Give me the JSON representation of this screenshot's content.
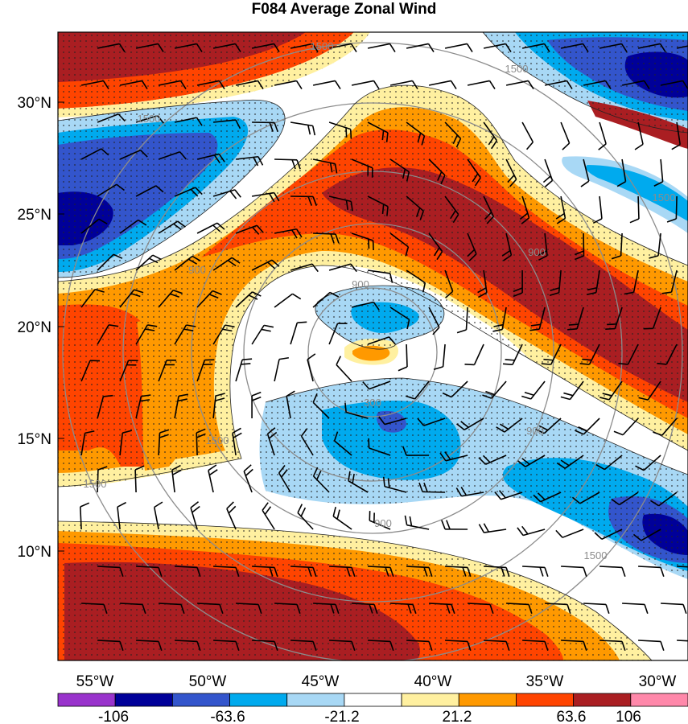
{
  "title": "F084 Average Zonal Wind",
  "lat_labels": [
    "30°N",
    "25°N",
    "20°N",
    "15°N",
    "10°N"
  ],
  "lon_labels": [
    "55°W",
    "50°W",
    "45°W",
    "40°W",
    "35°W",
    "30°W"
  ],
  "colorbar": {
    "colors": [
      "#9933cc",
      "#000099",
      "#3355cc",
      "#00aaee",
      "#a8d8f5",
      "#ffffff",
      "#fff0a0",
      "#ff9900",
      "#ff4400",
      "#aa1e22",
      "#ff88aa"
    ],
    "tick_labels": [
      "-106",
      "-63.6",
      "-21.2",
      "21.2",
      "63.6",
      "106"
    ]
  },
  "ring_labels": [
    "300",
    "900",
    "900",
    "900",
    "900",
    "900",
    "1500",
    "1500",
    "1500",
    "1500",
    "1500",
    "1500",
    "1500"
  ],
  "legend_palette_names": [
    "purple",
    "dark-blue",
    "blue",
    "cyan",
    "light-blue",
    "white",
    "light-yellow",
    "orange",
    "red-orange",
    "dark-red",
    "pink"
  ]
}
